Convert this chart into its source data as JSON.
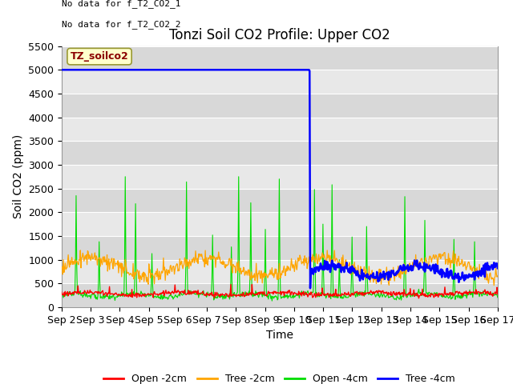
{
  "title": "Tonzi Soil CO2 Profile: Upper CO2",
  "xlabel": "Time",
  "ylabel": "Soil CO2 (ppm)",
  "no_data_text": [
    "No data for f_T2_CO2_1",
    "No data for f_T2_CO2_2"
  ],
  "legend_label_text": "TZ_soilco2",
  "ylim": [
    0,
    5500
  ],
  "yticks": [
    0,
    500,
    1000,
    1500,
    2000,
    2500,
    3000,
    3500,
    4000,
    4500,
    5000,
    5500
  ],
  "xtick_days": [
    2,
    3,
    4,
    5,
    6,
    7,
    8,
    9,
    10,
    11,
    12,
    13,
    14,
    15,
    16,
    17
  ],
  "colors": {
    "open_2cm": "#ff0000",
    "tree_2cm": "#ffa500",
    "open_4cm": "#00dd00",
    "tree_4cm": "#0000ff"
  },
  "legend_items": [
    {
      "label": "Open -2cm",
      "color": "#ff0000"
    },
    {
      "label": "Tree -2cm",
      "color": "#ffa500"
    },
    {
      "label": "Open -4cm",
      "color": "#00dd00"
    },
    {
      "label": "Tree -4cm",
      "color": "#0000ff"
    }
  ],
  "plot_bg_color": "#e8e8e8",
  "fig_bg_color": "#ffffff",
  "title_fontsize": 12,
  "axis_label_fontsize": 10,
  "tick_fontsize": 9,
  "nodata_fontsize": 8,
  "legend_fontsize": 9,
  "band_colors": [
    "#d8d8d8",
    "#e8e8e8"
  ]
}
